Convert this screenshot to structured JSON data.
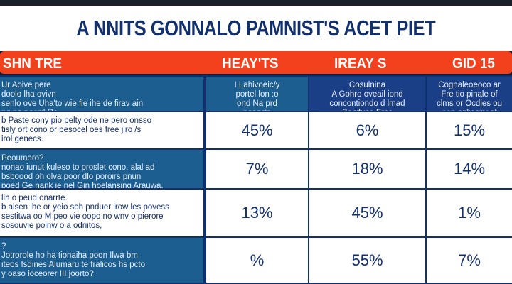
{
  "title": "A NNITS GONNALO PAMNIST'S ACET PIET",
  "headers": [
    "SHN TRE",
    "HEAY'TS",
    "IREAY S",
    "GID 15"
  ],
  "header_row": [
    "Ur Aoive pere\ndoolo lha ovivn\nsenlo ove Uha'to wie fie ihe de firav ain\nng na peord Re.",
    "I Lahivoeic/y\nportel lon :o\nond Na prd\npoanrte",
    "Cosulnina\nA Gohro oveail iond\nconcontiondo d lmad\nSonifuse Fros\nV",
    "Cognaleoeoco ar\nFre tio pinale of\nclms or Ocdies ou\noop oirliosiry of\ncdialUye"
  ],
  "rows": [
    {
      "label": "b Paste cony pio pelty ode ne pero onsso\ntisly ort cono or pesocel oes free jiro /s\nirol genecs.",
      "values": [
        "45%",
        "6%",
        "15%"
      ]
    },
    {
      "label": "Peoumero?\nnonao iunut kuleso to proslet cono. alal ad\nbsboood oh olva poor dlo poroirs pnun\npoed Ge nank ie nel Gin hoelansing Arauwa.",
      "values": [
        "7%",
        "18%",
        "14%"
      ]
    },
    {
      "label": "lih o peud onarrte.\nb aisen ihe or yeio soh pnduer lrow les povess\nsestitwa oo M peo vie oopo no wnv o pierore\nsosouvie poinw o a odriitos,",
      "values": [
        "13%",
        "45%",
        "1%"
      ]
    },
    {
      "label": "?\nJotrorole ho ha tionaiha poon Ilwa bm\niteos fsdines Alumaru te fralicos hs pcto\ny oaso ioceorer III joorto?",
      "values": [
        "%",
        "55%",
        "7%"
      ]
    }
  ],
  "colors": {
    "header": "#f2411c",
    "navy": "#13306e",
    "blue": "#1d5e90"
  }
}
